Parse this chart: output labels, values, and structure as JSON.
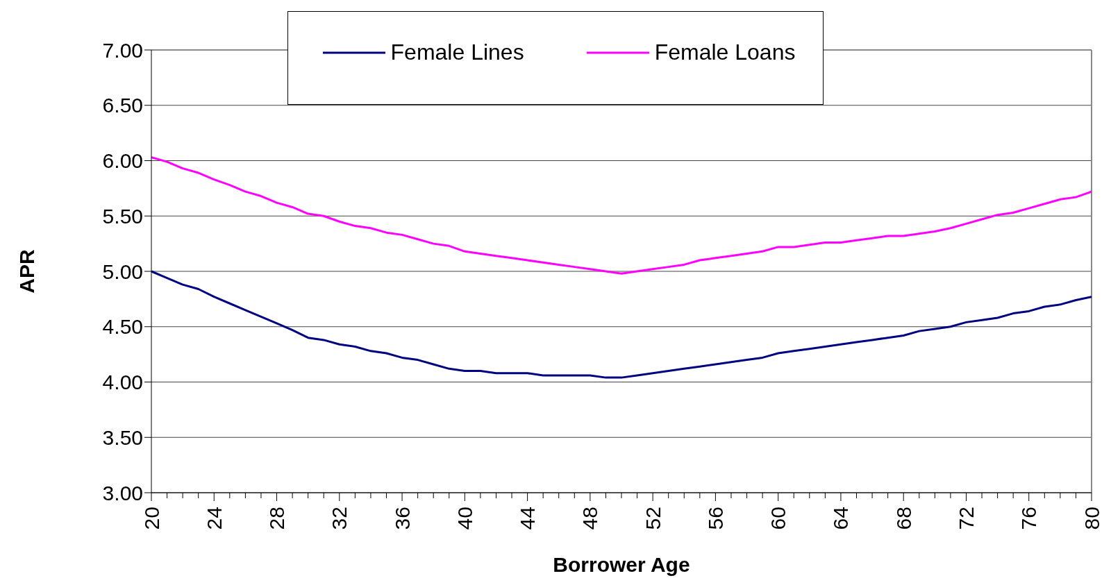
{
  "chart_data": {
    "type": "line",
    "xlabel": "Borrower Age",
    "ylabel": "APR",
    "x": [
      20,
      21,
      22,
      23,
      24,
      25,
      26,
      27,
      28,
      29,
      30,
      31,
      32,
      33,
      34,
      35,
      36,
      37,
      38,
      39,
      40,
      41,
      42,
      43,
      44,
      45,
      46,
      47,
      48,
      49,
      50,
      51,
      52,
      53,
      54,
      55,
      56,
      57,
      58,
      59,
      60,
      61,
      62,
      63,
      64,
      65,
      66,
      67,
      68,
      69,
      70,
      71,
      72,
      73,
      74,
      75,
      76,
      77,
      78,
      79,
      80
    ],
    "series": [
      {
        "name": "Female Lines",
        "color": "#000080",
        "values": [
          5.0,
          4.94,
          4.88,
          4.84,
          4.77,
          4.71,
          4.65,
          4.59,
          4.53,
          4.47,
          4.4,
          4.38,
          4.34,
          4.32,
          4.28,
          4.26,
          4.22,
          4.2,
          4.16,
          4.12,
          4.1,
          4.1,
          4.08,
          4.08,
          4.08,
          4.06,
          4.06,
          4.06,
          4.06,
          4.04,
          4.04,
          4.06,
          4.08,
          4.1,
          4.12,
          4.14,
          4.16,
          4.18,
          4.2,
          4.22,
          4.26,
          4.28,
          4.3,
          4.32,
          4.34,
          4.36,
          4.38,
          4.4,
          4.42,
          4.46,
          4.48,
          4.5,
          4.54,
          4.56,
          4.58,
          4.62,
          4.64,
          4.68,
          4.7,
          4.74,
          4.77
        ]
      },
      {
        "name": "Female Loans",
        "color": "#ff00ff",
        "values": [
          6.03,
          5.99,
          5.93,
          5.89,
          5.83,
          5.78,
          5.72,
          5.68,
          5.62,
          5.58,
          5.52,
          5.5,
          5.45,
          5.41,
          5.39,
          5.35,
          5.33,
          5.29,
          5.25,
          5.23,
          5.18,
          5.16,
          5.14,
          5.12,
          5.1,
          5.08,
          5.06,
          5.04,
          5.02,
          5.0,
          4.98,
          5.0,
          5.02,
          5.04,
          5.06,
          5.1,
          5.12,
          5.14,
          5.16,
          5.18,
          5.22,
          5.22,
          5.24,
          5.26,
          5.26,
          5.28,
          5.3,
          5.32,
          5.32,
          5.34,
          5.36,
          5.39,
          5.43,
          5.47,
          5.51,
          5.53,
          5.57,
          5.61,
          5.65,
          5.67,
          5.72
        ]
      }
    ],
    "xlim": [
      20,
      80
    ],
    "xticks": [
      20,
      {
        "value": 21,
        "label": null
      },
      {
        "value": 22,
        "label": null
      },
      {
        "value": 23,
        "label": null
      },
      24,
      {
        "value": 25,
        "label": null
      },
      {
        "value": 26,
        "label": null
      },
      {
        "value": 27,
        "label": null
      },
      28,
      {
        "value": 29,
        "label": null
      },
      {
        "value": 30,
        "label": null
      },
      {
        "value": 31,
        "label": null
      },
      32,
      {
        "value": 33,
        "label": null
      },
      {
        "value": 34,
        "label": null
      },
      {
        "value": 35,
        "label": null
      },
      36,
      {
        "value": 37,
        "label": null
      },
      {
        "value": 38,
        "label": null
      },
      {
        "value": 39,
        "label": null
      },
      40,
      {
        "value": 41,
        "label": null
      },
      {
        "value": 42,
        "label": null
      },
      {
        "value": 43,
        "label": null
      },
      44,
      {
        "value": 45,
        "label": null
      },
      {
        "value": 46,
        "label": null
      },
      {
        "value": 47,
        "label": null
      },
      48,
      {
        "value": 49,
        "label": null
      },
      {
        "value": 50,
        "label": null
      },
      {
        "value": 51,
        "label": null
      },
      52,
      {
        "value": 53,
        "label": null
      },
      {
        "value": 54,
        "label": null
      },
      {
        "value": 55,
        "label": null
      },
      56,
      {
        "value": 57,
        "label": null
      },
      {
        "value": 58,
        "label": null
      },
      {
        "value": 59,
        "label": null
      },
      60,
      {
        "value": 61,
        "label": null
      },
      {
        "value": 62,
        "label": null
      },
      {
        "value": 63,
        "label": null
      },
      64,
      {
        "value": 65,
        "label": null
      },
      {
        "value": 66,
        "label": null
      },
      {
        "value": 67,
        "label": null
      },
      68,
      {
        "value": 69,
        "label": null
      },
      {
        "value": 70,
        "label": null
      },
      {
        "value": 71,
        "label": null
      },
      72,
      {
        "value": 73,
        "label": null
      },
      {
        "value": 74,
        "label": null
      },
      {
        "value": 75,
        "label": null
      },
      76,
      {
        "value": 77,
        "label": null
      },
      {
        "value": 78,
        "label": null
      },
      {
        "value": 79,
        "label": null
      },
      80
    ],
    "ylim": [
      3,
      7
    ],
    "yticks": [
      {
        "value": 3,
        "label": "3.00"
      },
      {
        "value": 3.5,
        "label": "3.50"
      },
      {
        "value": 4,
        "label": "4.00"
      },
      {
        "value": 4.5,
        "label": "4.50"
      },
      {
        "value": 5,
        "label": "5.00"
      },
      {
        "value": 5.5,
        "label": "5.50"
      },
      {
        "value": 6,
        "label": "6.00"
      },
      {
        "value": 6.5,
        "label": "6.50"
      },
      {
        "value": 7,
        "label": "7.00"
      }
    ],
    "grid": "y",
    "legend": "top",
    "marker": "none",
    "line_style": "solid"
  }
}
